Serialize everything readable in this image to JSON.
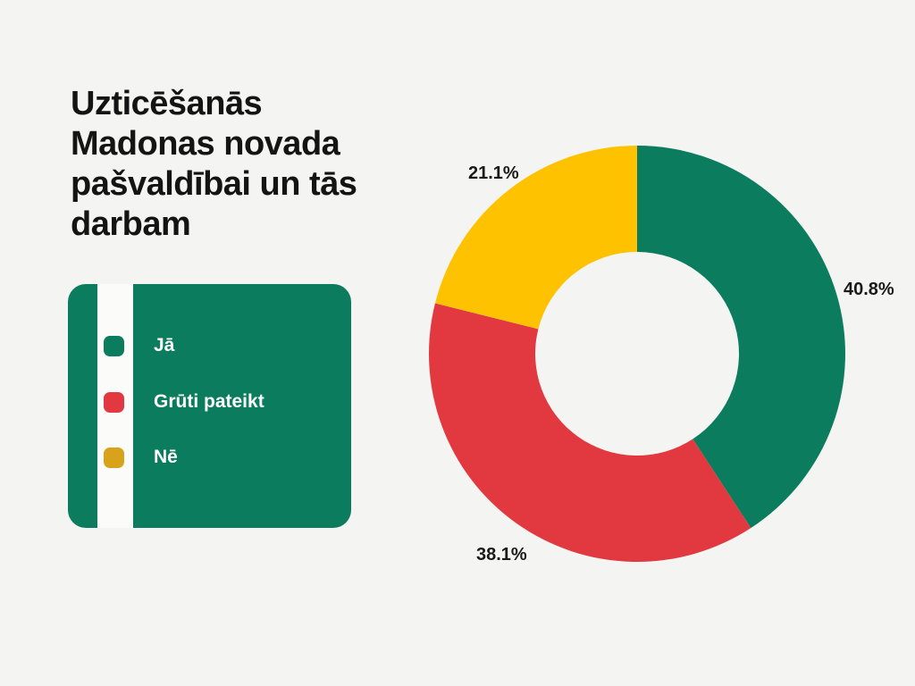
{
  "page": {
    "background_color": "#f4f4f2"
  },
  "title": {
    "text": "Uzticēšanās Madonas novada pašvaldībai un tās darbam",
    "lines": [
      "Uzticēšanās",
      "Madonas novada",
      "pašvaldībai un tās",
      "darbam"
    ],
    "color": "#141414"
  },
  "legend": {
    "bg_color": "#0b7d5e",
    "stripe_color": "#fbfbf9",
    "items": [
      {
        "label": "Jā",
        "swatch_color": "#0b7d5e"
      },
      {
        "label": "Grūti pateikt",
        "swatch_color": "#e1393f"
      },
      {
        "label": "Nē",
        "swatch_color": "#d8a31a"
      }
    ]
  },
  "chart_data": {
    "type": "pie",
    "subtype": "donut",
    "title": "Uzticēšanās Madonas novada pašvaldībai un tās darbam",
    "categories": [
      "Jā",
      "Grūti pateikt",
      "Nē"
    ],
    "values": [
      40.8,
      38.1,
      21.1
    ],
    "unit": "%",
    "colors": [
      "#0b7d5e",
      "#e1393f",
      "#fec200"
    ],
    "labels": [
      {
        "text": "40.8%"
      },
      {
        "text": "38.1%"
      },
      {
        "text": "21.1%"
      }
    ],
    "start_angle_deg": 0,
    "direction": "clockwise",
    "inner_radius_ratio": 0.49,
    "legend_position": "left",
    "grid": false
  }
}
